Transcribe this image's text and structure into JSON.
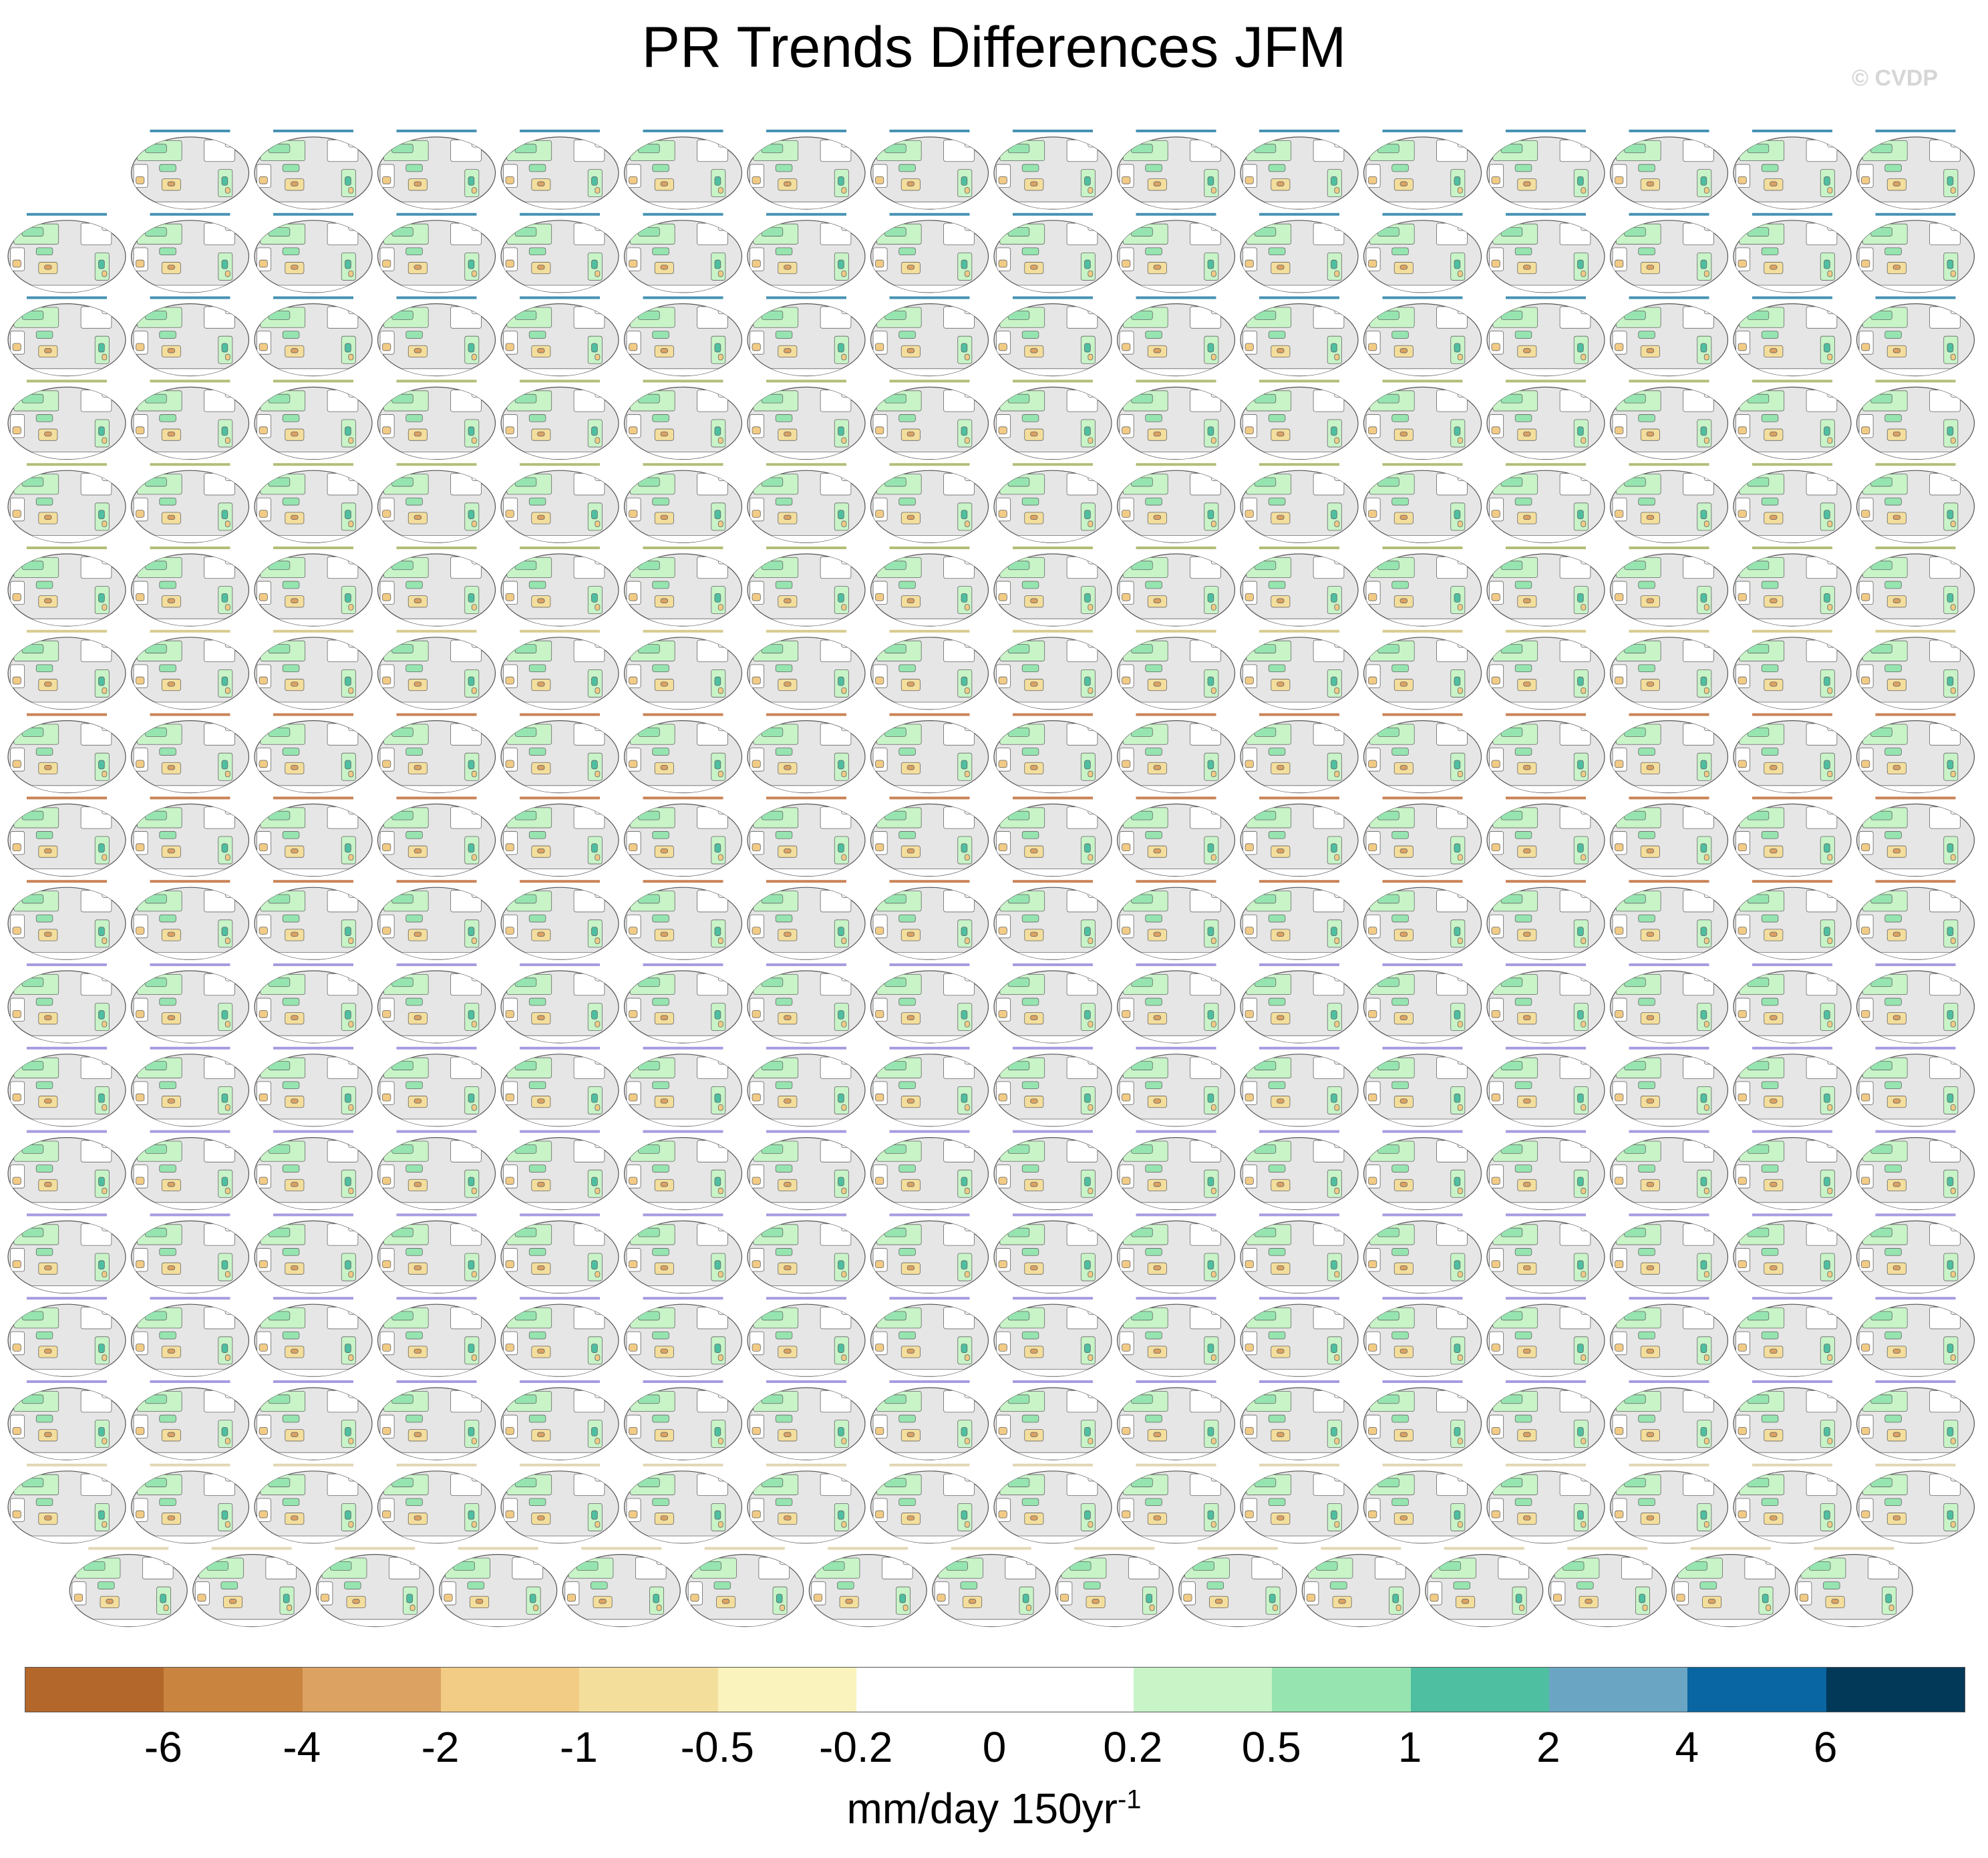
{
  "title": "PR Trends Differences JFM",
  "watermark": "© CVDP",
  "panels": {
    "grid_columns": 16,
    "rows": [
      {
        "columns": [
          1,
          2,
          3,
          4,
          5,
          6,
          7,
          8,
          9,
          10,
          11,
          12,
          13,
          14,
          15
        ],
        "label_color": "#0a6e9a"
      },
      {
        "columns": [
          0,
          1,
          2,
          3,
          4,
          5,
          6,
          7,
          8,
          9,
          10,
          11,
          12,
          13,
          14,
          15
        ],
        "label_color": "#0a6e9a"
      },
      {
        "columns": [
          0,
          1,
          2,
          3,
          4,
          5,
          6,
          7,
          8,
          9,
          10,
          11,
          12,
          13,
          14,
          15
        ],
        "label_color": "#0a6e9a"
      },
      {
        "columns": [
          0,
          1,
          2,
          3,
          4,
          5,
          6,
          7,
          8,
          9,
          10,
          11,
          12,
          13,
          14,
          15
        ],
        "label_color": "#9aa84a"
      },
      {
        "columns": [
          0,
          1,
          2,
          3,
          4,
          5,
          6,
          7,
          8,
          9,
          10,
          11,
          12,
          13,
          14,
          15
        ],
        "label_color": "#9aa84a"
      },
      {
        "columns": [
          0,
          1,
          2,
          3,
          4,
          5,
          6,
          7,
          8,
          9,
          10,
          11,
          12,
          13,
          14,
          15
        ],
        "label_color": "#9aa84a"
      },
      {
        "columns": [
          0,
          1,
          2,
          3,
          4,
          5,
          6,
          7,
          8,
          9,
          10,
          11,
          12,
          13,
          14,
          15
        ],
        "label_color": "#c9b96a"
      },
      {
        "columns": [
          0,
          1,
          2,
          3,
          4,
          5,
          6,
          7,
          8,
          9,
          10,
          11,
          12,
          13,
          14,
          15
        ],
        "label_color": "#b85a1e"
      },
      {
        "columns": [
          0,
          1,
          2,
          3,
          4,
          5,
          6,
          7,
          8,
          9,
          10,
          11,
          12,
          13,
          14,
          15
        ],
        "label_color": "#b85a1e"
      },
      {
        "columns": [
          0,
          1,
          2,
          3,
          4,
          5,
          6,
          7,
          8,
          9,
          10,
          11,
          12,
          13,
          14,
          15
        ],
        "label_color": "#b85a1e"
      },
      {
        "columns": [
          0,
          1,
          2,
          3,
          4,
          5,
          6,
          7,
          8,
          9,
          10,
          11,
          12,
          13,
          14,
          15
        ],
        "label_color": "#8a7ad6"
      },
      {
        "columns": [
          0,
          1,
          2,
          3,
          4,
          5,
          6,
          7,
          8,
          9,
          10,
          11,
          12,
          13,
          14,
          15
        ],
        "label_color": "#8a7ad6"
      },
      {
        "columns": [
          0,
          1,
          2,
          3,
          4,
          5,
          6,
          7,
          8,
          9,
          10,
          11,
          12,
          13,
          14,
          15
        ],
        "label_color": "#8a7ad6"
      },
      {
        "columns": [
          0,
          1,
          2,
          3,
          4,
          5,
          6,
          7,
          8,
          9,
          10,
          11,
          12,
          13,
          14,
          15
        ],
        "label_color": "#8a7ad6"
      },
      {
        "columns": [
          0,
          1,
          2,
          3,
          4,
          5,
          6,
          7,
          8,
          9,
          10,
          11,
          12,
          13,
          14,
          15
        ],
        "label_color": "#8a7ad6"
      },
      {
        "columns": [
          0,
          1,
          2,
          3,
          4,
          5,
          6,
          7,
          8,
          9,
          10,
          11,
          12,
          13,
          14,
          15
        ],
        "label_color": "#8a7ad6"
      },
      {
        "columns": [
          0,
          1,
          2,
          3,
          4,
          5,
          6,
          7,
          8,
          9,
          10,
          11,
          12,
          13,
          14,
          15
        ],
        "label_color": "#d8c89a"
      },
      {
        "columns": [
          0.5,
          1.5,
          2.5,
          3.5,
          4.5,
          5.5,
          6.5,
          7.5,
          8.5,
          9.5,
          10.5,
          11.5,
          12.5,
          13.5,
          14.5
        ],
        "label_color": "#d8c89a"
      }
    ]
  },
  "colorbar": {
    "colors": [
      "#b4672a",
      "#c9843f",
      "#dca262",
      "#f2cb85",
      "#f4de9c",
      "#fbf3bd",
      "#ffffff",
      "#ffffff",
      "#c8f4c8",
      "#96e5b0",
      "#4ebfa0",
      "#6aa6c4",
      "#0a66a2",
      "#023858"
    ],
    "tick_labels": [
      "-6",
      "-4",
      "-2",
      "-1",
      "-0.5",
      "-0.2",
      "0",
      "0.2",
      "0.5",
      "1",
      "2",
      "4",
      "6"
    ],
    "units_base": "mm/day 150yr",
    "units_exponent": "-1"
  }
}
